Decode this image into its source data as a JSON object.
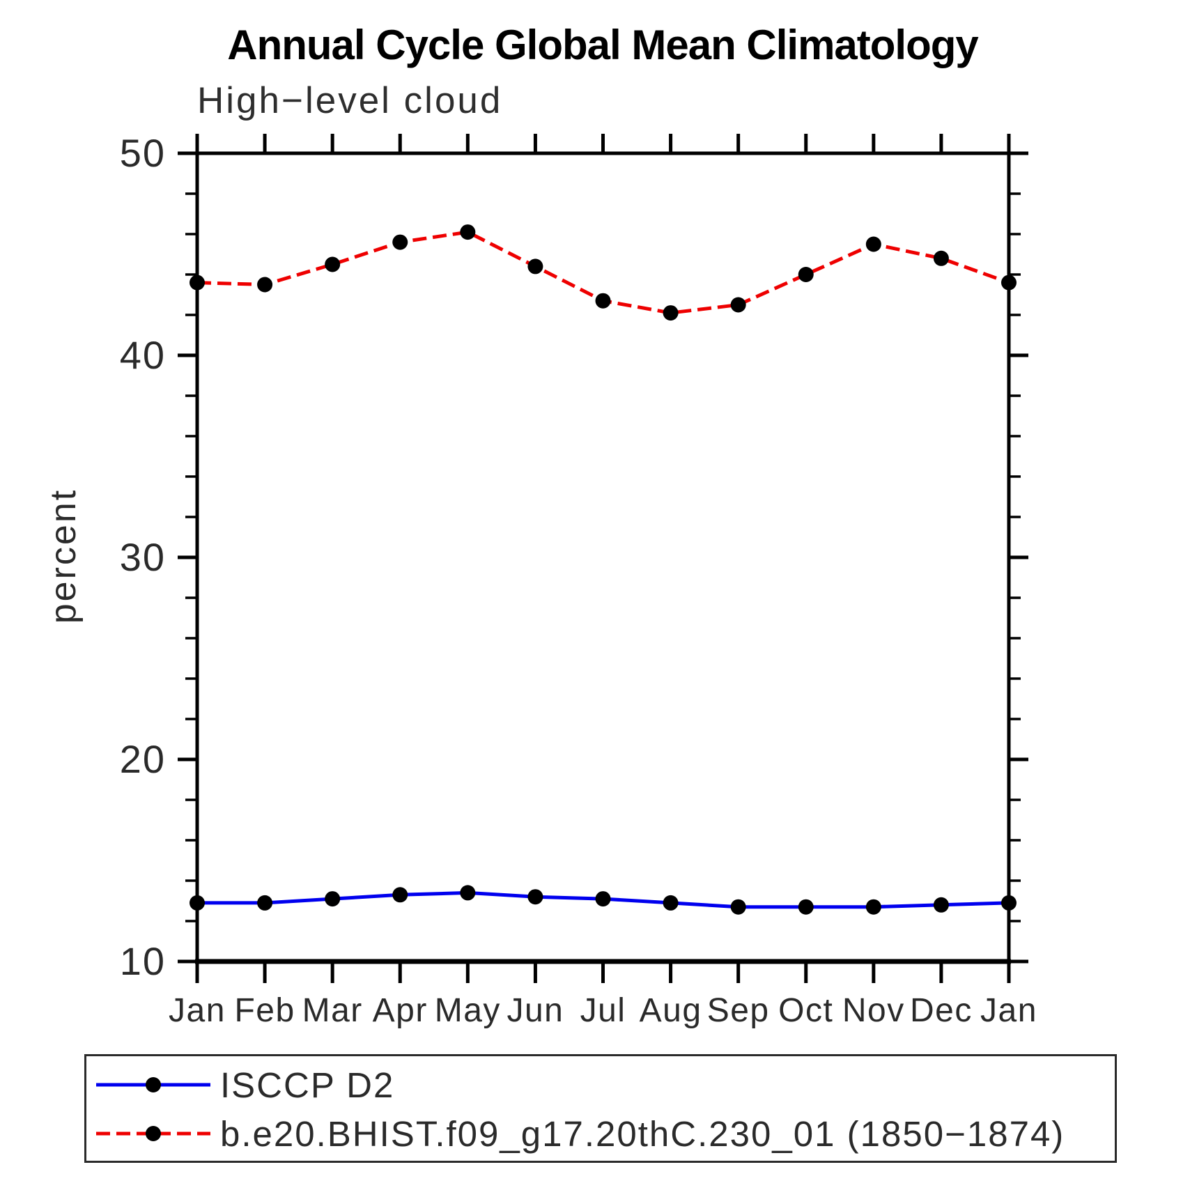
{
  "title": "Annual Cycle Global Mean Climatology",
  "subtitle": "High−level cloud",
  "chart_data": {
    "type": "line",
    "title": "Annual Cycle Global Mean Climatology",
    "subtitle": "High−level cloud",
    "x_categories": [
      "Jan",
      "Feb",
      "Mar",
      "Apr",
      "May",
      "Jun",
      "Jul",
      "Aug",
      "Sep",
      "Oct",
      "Nov",
      "Dec",
      "Jan"
    ],
    "xlabel": "",
    "ylabel": "percent",
    "ylim": [
      10,
      50
    ],
    "ytick_major": [
      10,
      20,
      30,
      40,
      50
    ],
    "ytick_minor_step": 2,
    "grid": false,
    "legend_position": "bottom-box",
    "series": [
      {
        "name": "ISCCP D2",
        "style": "solid",
        "color": "#0000EE",
        "marker": "filled-circle",
        "marker_color": "#000000",
        "values": [
          12.9,
          12.9,
          13.1,
          13.3,
          13.4,
          13.2,
          13.1,
          12.9,
          12.7,
          12.7,
          12.7,
          12.8,
          12.9
        ]
      },
      {
        "name": "b.e20.BHIST.f09_g17.20thC.230_01 (1850−1874)",
        "style": "dashed",
        "color": "#EE0000",
        "marker": "filled-circle",
        "marker_color": "#000000",
        "values": [
          43.6,
          43.5,
          44.5,
          45.6,
          46.1,
          44.4,
          42.7,
          42.1,
          42.5,
          44.0,
          45.5,
          44.8,
          43.6
        ]
      }
    ],
    "axis_color": "#000000"
  }
}
